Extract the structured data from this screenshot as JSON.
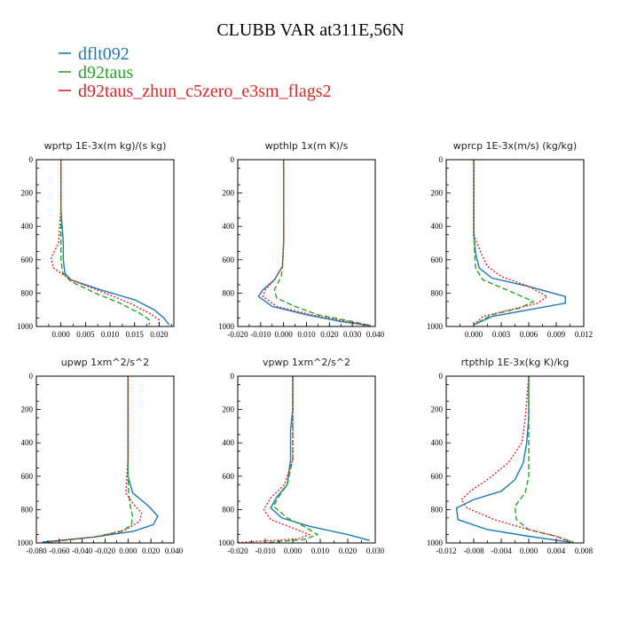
{
  "figure": {
    "title": "CLUBB VAR at311E,56N"
  },
  "legend": [
    {
      "label": "dflt092",
      "color": "#1f77b4",
      "dash": "solid"
    },
    {
      "label": "d92taus",
      "color": "#2ca02c",
      "dash": "dashed"
    },
    {
      "label": "d92taus_zhun_c5zero_e3sm_flags2",
      "color": "#d62728",
      "dash": "dotted"
    }
  ],
  "chart_data": [
    {
      "type": "line",
      "title": "wprtp   1E-3x(m kg)/(s kg)",
      "xlim": [
        -0.005,
        0.023
      ],
      "xticks": [
        "0.000",
        "0.005",
        "0.010",
        "0.015",
        "0.020"
      ],
      "xtick_values": [
        0.0,
        0.005,
        0.01,
        0.015,
        0.02
      ],
      "ylim": [
        0,
        1000
      ],
      "yticks": [
        "0",
        "200",
        "400",
        "600",
        "800",
        "1000"
      ],
      "y_inverted": true,
      "series": [
        {
          "name": "dflt092",
          "values": [
            [
              0.0,
              0
            ],
            [
              0.0,
              300
            ],
            [
              0.0005,
              500
            ],
            [
              0.0005,
              600
            ],
            [
              0.0008,
              680
            ],
            [
              0.002,
              720
            ],
            [
              0.008,
              780
            ],
            [
              0.015,
              840
            ],
            [
              0.019,
              900
            ],
            [
              0.021,
              950
            ],
            [
              0.022,
              990
            ]
          ]
        },
        {
          "name": "d92taus",
          "values": [
            [
              0.0,
              0
            ],
            [
              0.0,
              300
            ],
            [
              0.0,
              500
            ],
            [
              0.0,
              600
            ],
            [
              0.0004,
              680
            ],
            [
              0.002,
              730
            ],
            [
              0.007,
              800
            ],
            [
              0.012,
              860
            ],
            [
              0.016,
              920
            ],
            [
              0.018,
              960
            ],
            [
              0.018,
              990
            ]
          ]
        },
        {
          "name": "d92taus_zhun_c5zero_e3sm_flags2",
          "values": [
            [
              0.0,
              0
            ],
            [
              0.0,
              300
            ],
            [
              -0.0005,
              500
            ],
            [
              -0.002,
              590
            ],
            [
              -0.0015,
              650
            ],
            [
              0.002,
              720
            ],
            [
              0.009,
              800
            ],
            [
              0.014,
              860
            ],
            [
              0.018,
              920
            ],
            [
              0.02,
              960
            ],
            [
              0.02,
              990
            ]
          ]
        }
      ]
    },
    {
      "type": "line",
      "title": "wpthlp   1x(m K)/s",
      "xlim": [
        -0.02,
        0.04
      ],
      "xticks": [
        "-0.020",
        "-0.010",
        "0.000",
        "0.010",
        "0.020",
        "0.030",
        "0.040"
      ],
      "xtick_values": [
        -0.02,
        -0.01,
        0.0,
        0.01,
        0.02,
        0.03,
        0.04
      ],
      "ylim": [
        0,
        1000
      ],
      "yticks": [
        "0",
        "200",
        "400",
        "600",
        "800",
        "1000"
      ],
      "y_inverted": true,
      "series": [
        {
          "name": "dflt092",
          "values": [
            [
              0.0,
              0
            ],
            [
              0.0,
              300
            ],
            [
              0.0,
              500
            ],
            [
              -0.0005,
              640
            ],
            [
              -0.004,
              720
            ],
            [
              -0.009,
              780
            ],
            [
              -0.011,
              820
            ],
            [
              -0.005,
              880
            ],
            [
              0.01,
              930
            ],
            [
              0.025,
              970
            ],
            [
              0.038,
              995
            ]
          ]
        },
        {
          "name": "d92taus",
          "values": [
            [
              0.0,
              0
            ],
            [
              0.0,
              300
            ],
            [
              0.0,
              500
            ],
            [
              -0.0005,
              640
            ],
            [
              -0.001,
              700
            ],
            [
              -0.004,
              780
            ],
            [
              -0.003,
              830
            ],
            [
              0.005,
              880
            ],
            [
              0.015,
              930
            ],
            [
              0.03,
              970
            ],
            [
              0.038,
              995
            ]
          ]
        },
        {
          "name": "d92taus_zhun_c5zero_e3sm_flags2",
          "values": [
            [
              0.0,
              0
            ],
            [
              0.0,
              300
            ],
            [
              0.0,
              500
            ],
            [
              -0.0005,
              640
            ],
            [
              -0.004,
              720
            ],
            [
              -0.008,
              780
            ],
            [
              -0.009,
              820
            ],
            [
              -0.003,
              880
            ],
            [
              0.012,
              930
            ],
            [
              0.028,
              970
            ],
            [
              0.038,
              995
            ]
          ]
        }
      ]
    },
    {
      "type": "line",
      "title": "wprcp   1E-3x(m/s) (kg/kg)",
      "xlim": [
        -0.003,
        0.012
      ],
      "xticks": [
        "0.000",
        "0.003",
        "0.006",
        "0.009",
        "0.012"
      ],
      "xtick_values": [
        0.0,
        0.003,
        0.006,
        0.009,
        0.012
      ],
      "ylim": [
        0,
        1000
      ],
      "yticks": [
        "0",
        "200",
        "400",
        "600",
        "800",
        "1000"
      ],
      "y_inverted": true,
      "series": [
        {
          "name": "dflt092",
          "values": [
            [
              0.0,
              0
            ],
            [
              0.0,
              300
            ],
            [
              0.0,
              450
            ],
            [
              0.0002,
              560
            ],
            [
              0.0006,
              650
            ],
            [
              0.002,
              710
            ],
            [
              0.006,
              760
            ],
            [
              0.01,
              820
            ],
            [
              0.01,
              860
            ],
            [
              0.006,
              900
            ],
            [
              0.002,
              940
            ],
            [
              0.0,
              990
            ]
          ]
        },
        {
          "name": "d92taus",
          "values": [
            [
              0.0,
              0
            ],
            [
              0.0,
              300
            ],
            [
              0.0,
              450
            ],
            [
              0.0001,
              560
            ],
            [
              0.0002,
              650
            ],
            [
              0.001,
              720
            ],
            [
              0.004,
              790
            ],
            [
              0.0065,
              850
            ],
            [
              0.005,
              890
            ],
            [
              0.002,
              930
            ],
            [
              0.0,
              990
            ]
          ]
        },
        {
          "name": "d92taus_zhun_c5zero_e3sm_flags2",
          "values": [
            [
              0.0,
              0
            ],
            [
              0.0,
              300
            ],
            [
              0.0,
              450
            ],
            [
              0.0008,
              560
            ],
            [
              0.0015,
              640
            ],
            [
              0.003,
              700
            ],
            [
              0.006,
              760
            ],
            [
              0.008,
              820
            ],
            [
              0.007,
              860
            ],
            [
              0.004,
              900
            ],
            [
              0.001,
              940
            ],
            [
              0.0,
              990
            ]
          ]
        }
      ]
    },
    {
      "type": "line",
      "title": "upwp   1xm^2/s^2",
      "xlim": [
        -0.08,
        0.04
      ],
      "xticks": [
        "-0.080",
        "-0.060",
        "-0.040",
        "-0.020",
        "0.000",
        "0.020",
        "0.040"
      ],
      "xtick_values": [
        -0.08,
        -0.06,
        -0.04,
        -0.02,
        0.0,
        0.02,
        0.04
      ],
      "ylim": [
        0,
        1000
      ],
      "yticks": [
        "0",
        "200",
        "400",
        "600",
        "800",
        "1000"
      ],
      "y_inverted": true,
      "series": [
        {
          "name": "dflt092",
          "values": [
            [
              0.0,
              0
            ],
            [
              0.0,
              300
            ],
            [
              0.0,
              500
            ],
            [
              0.0,
              600
            ],
            [
              0.004,
              700
            ],
            [
              0.018,
              780
            ],
            [
              0.026,
              840
            ],
            [
              0.022,
              890
            ],
            [
              0.005,
              930
            ],
            [
              -0.03,
              965
            ],
            [
              -0.075,
              995
            ]
          ]
        },
        {
          "name": "d92taus",
          "values": [
            [
              0.0,
              0
            ],
            [
              0.0,
              300
            ],
            [
              0.0,
              500
            ],
            [
              0.0,
              600
            ],
            [
              0.0005,
              700
            ],
            [
              0.002,
              780
            ],
            [
              0.004,
              840
            ],
            [
              0.003,
              890
            ],
            [
              -0.005,
              930
            ],
            [
              -0.03,
              965
            ],
            [
              -0.07,
              995
            ]
          ]
        },
        {
          "name": "d92taus_zhun_c5zero_e3sm_flags2",
          "values": [
            [
              0.0,
              0
            ],
            [
              0.0,
              300
            ],
            [
              0.0,
              500
            ],
            [
              -0.001,
              600
            ],
            [
              -0.002,
              700
            ],
            [
              0.005,
              770
            ],
            [
              0.012,
              820
            ],
            [
              0.01,
              870
            ],
            [
              -0.002,
              920
            ],
            [
              -0.025,
              960
            ],
            [
              -0.07,
              995
            ]
          ]
        }
      ]
    },
    {
      "type": "line",
      "title": "vpwp   1xm^2/s^2",
      "xlim": [
        -0.02,
        0.03
      ],
      "xticks": [
        "-0.020",
        "-0.010",
        "0.000",
        "0.010",
        "0.020",
        "0.030"
      ],
      "xtick_values": [
        -0.02,
        -0.01,
        0.0,
        0.01,
        0.02,
        0.03
      ],
      "ylim": [
        0,
        1000
      ],
      "yticks": [
        "0",
        "200",
        "400",
        "600",
        "800",
        "1000"
      ],
      "y_inverted": true,
      "series": [
        {
          "name": "dflt092",
          "values": [
            [
              0.0,
              0
            ],
            [
              0.0,
              200
            ],
            [
              -0.0008,
              320
            ],
            [
              -0.0008,
              500
            ],
            [
              -0.002,
              650
            ],
            [
              -0.006,
              730
            ],
            [
              -0.008,
              790
            ],
            [
              -0.004,
              850
            ],
            [
              0.006,
              900
            ],
            [
              0.02,
              950
            ],
            [
              0.028,
              985
            ]
          ]
        },
        {
          "name": "d92taus",
          "values": [
            [
              0.0,
              0
            ],
            [
              0.0,
              200
            ],
            [
              0.0,
              320
            ],
            [
              0.0,
              500
            ],
            [
              -0.002,
              650
            ],
            [
              -0.005,
              720
            ],
            [
              -0.007,
              780
            ],
            [
              -0.002,
              850
            ],
            [
              0.004,
              900
            ],
            [
              0.009,
              950
            ],
            [
              0.004,
              980
            ],
            [
              -0.01,
              998
            ]
          ]
        },
        {
          "name": "d92taus_zhun_c5zero_e3sm_flags2",
          "values": [
            [
              0.0,
              0
            ],
            [
              0.0,
              200
            ],
            [
              0.0,
              320
            ],
            [
              0.0,
              500
            ],
            [
              -0.003,
              650
            ],
            [
              -0.008,
              730
            ],
            [
              -0.0105,
              800
            ],
            [
              -0.008,
              860
            ],
            [
              0.0,
              910
            ],
            [
              0.006,
              950
            ],
            [
              0.002,
              975
            ],
            [
              -0.02,
              998
            ]
          ]
        }
      ]
    },
    {
      "type": "line",
      "title": "rtpthlp   1E-3x(kg K)/kg",
      "xlim": [
        -0.012,
        0.008
      ],
      "xticks": [
        "-0.012",
        "-0.008",
        "-0.004",
        "0.000",
        "0.004",
        "0.008"
      ],
      "xtick_values": [
        -0.012,
        -0.008,
        -0.004,
        0.0,
        0.004,
        0.008
      ],
      "ylim": [
        0,
        1000
      ],
      "yticks": [
        "0",
        "200",
        "400",
        "600",
        "800",
        "1000"
      ],
      "y_inverted": true,
      "series": [
        {
          "name": "dflt092",
          "values": [
            [
              0.0,
              0
            ],
            [
              0.0,
              250
            ],
            [
              -0.0003,
              400
            ],
            [
              -0.0008,
              520
            ],
            [
              -0.002,
              620
            ],
            [
              -0.004,
              690
            ],
            [
              -0.008,
              740
            ],
            [
              -0.0105,
              790
            ],
            [
              -0.0103,
              860
            ],
            [
              -0.006,
              920
            ],
            [
              0.0,
              960
            ],
            [
              0.006,
              995
            ]
          ]
        },
        {
          "name": "d92taus",
          "values": [
            [
              0.0,
              0
            ],
            [
              0.0,
              250
            ],
            [
              0.0,
              450
            ],
            [
              0.0,
              600
            ],
            [
              -0.0005,
              700
            ],
            [
              -0.002,
              780
            ],
            [
              -0.0018,
              860
            ],
            [
              0.0,
              920
            ],
            [
              0.004,
              960
            ],
            [
              0.0065,
              995
            ]
          ]
        },
        {
          "name": "d92taus_zhun_c5zero_e3sm_flags2",
          "values": [
            [
              0.0,
              0
            ],
            [
              -0.0005,
              250
            ],
            [
              -0.001,
              400
            ],
            [
              -0.003,
              520
            ],
            [
              -0.006,
              620
            ],
            [
              -0.0085,
              690
            ],
            [
              -0.0098,
              740
            ],
            [
              -0.009,
              790
            ],
            [
              -0.005,
              860
            ],
            [
              0.0,
              920
            ],
            [
              0.004,
              960
            ],
            [
              0.006,
              995
            ]
          ]
        }
      ]
    }
  ]
}
